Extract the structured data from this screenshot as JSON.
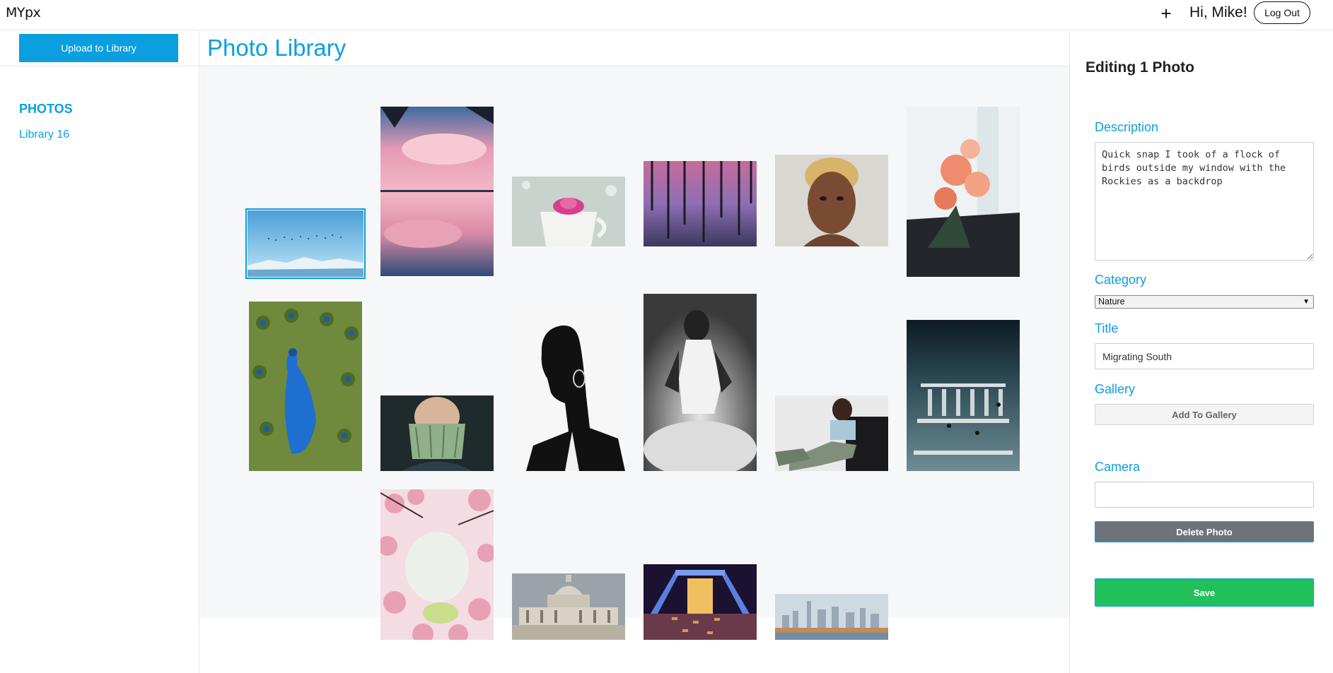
{
  "app": {
    "logo": "MYpx"
  },
  "header": {
    "add_label": "+",
    "greeting": "Hi, Mike!",
    "logout_label": "Log Out"
  },
  "sidebar": {
    "upload_label": "Upload to Library",
    "section_heading": "PHOTOS",
    "library_label": "Library 16"
  },
  "main": {
    "title": "Photo Library",
    "photos": [
      {
        "subject": "flock of birds over mountains",
        "selected": true
      },
      {
        "subject": "pink clouds reflected in lake",
        "selected": false
      },
      {
        "subject": "pink flower in white cup",
        "selected": false
      },
      {
        "subject": "hanging vines at pink dusk",
        "selected": false
      },
      {
        "subject": "woman portrait hand on cheek",
        "selected": false
      },
      {
        "subject": "orange flowers by window",
        "selected": false
      },
      {
        "subject": "peacock with open feathers",
        "selected": false
      },
      {
        "subject": "person holding dollar bills",
        "selected": false
      },
      {
        "subject": "black and white profile portrait",
        "selected": false
      },
      {
        "subject": "black and white woman in smoke",
        "selected": false
      },
      {
        "subject": "man seated on couch",
        "selected": false
      },
      {
        "subject": "city crosswalk from above",
        "selected": false
      },
      {
        "subject": "pink cherry blossoms",
        "selected": false
      },
      {
        "subject": "capitol building",
        "selected": false
      },
      {
        "subject": "lit bridge at night",
        "selected": false
      },
      {
        "subject": "city skyline over water",
        "selected": false
      }
    ]
  },
  "panel": {
    "title": "Editing 1 Photo",
    "description_label": "Description",
    "description_value": "Quick snap I took of a flock of birds outside my window with the Rockies as a backdrop",
    "category_label": "Category",
    "category_value": "Nature",
    "title_label": "Title",
    "title_value": "Migrating South",
    "gallery_label": "Gallery",
    "gallery_button": "Add To Gallery",
    "camera_label": "Camera",
    "camera_value": "",
    "delete_button": "Delete Photo",
    "save_button": "Save"
  },
  "colors": {
    "accent": "#0b9fe0",
    "save": "#22c05a",
    "delete": "#6c737a",
    "grid_background": "#f6f7f9"
  }
}
